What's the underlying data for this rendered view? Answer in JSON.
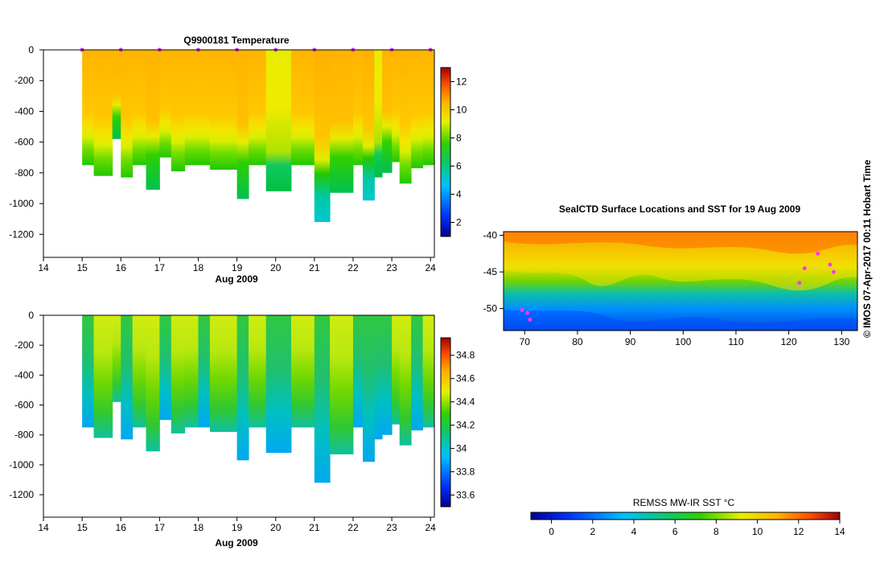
{
  "chart_data": [
    {
      "id": "temperature",
      "type": "heatmap",
      "title": "Q9900181  Temperature",
      "xlabel": "Aug 2009",
      "xlim": [
        14,
        24.1
      ],
      "xticks": [
        14,
        15,
        16,
        17,
        18,
        19,
        20,
        21,
        22,
        23,
        24
      ],
      "ylim": [
        -1350,
        0
      ],
      "yticks": [
        0,
        -200,
        -400,
        -600,
        -800,
        -1000,
        -1200
      ],
      "profile_times": [
        15.0,
        15.3,
        15.78,
        16.0,
        16.3,
        16.65,
        17.0,
        17.3,
        17.65,
        18.0,
        18.3,
        18.65,
        19.0,
        19.3,
        19.75,
        20.0,
        20.4,
        20.6,
        21.0,
        21.4,
        21.7,
        22.0,
        22.25,
        22.55,
        22.75,
        23.0,
        23.2,
        23.5,
        23.8,
        24.0
      ],
      "profile_depths": [
        750,
        820,
        580,
        830,
        750,
        910,
        700,
        790,
        750,
        750,
        780,
        780,
        970,
        750,
        920,
        920,
        750,
        750,
        1120,
        930,
        930,
        750,
        980,
        830,
        800,
        730,
        870,
        770,
        750,
        750
      ],
      "profile_class": [
        "w",
        "w",
        "n",
        "w",
        "w",
        "n",
        "w",
        "w",
        "w",
        "w",
        "w",
        "w",
        "n",
        "w",
        "m",
        "m",
        "w",
        "w",
        "c",
        "n",
        "n",
        "w",
        "c",
        "m",
        "n",
        "w",
        "w",
        "w",
        "w",
        "w"
      ],
      "markers": [
        15,
        16,
        17,
        18,
        19,
        20,
        21,
        22,
        23,
        24
      ],
      "colorbar": {
        "min": 1,
        "max": 13,
        "ticks": [
          2,
          4,
          6,
          8,
          10,
          12
        ]
      }
    },
    {
      "id": "salinity",
      "type": "heatmap",
      "title": "",
      "xlabel": "Aug 2009",
      "xlim": [
        14,
        24.1
      ],
      "xticks": [
        14,
        15,
        16,
        17,
        18,
        19,
        20,
        21,
        22,
        23,
        24
      ],
      "ylim": [
        -1350,
        0
      ],
      "yticks": [
        0,
        -200,
        -400,
        -600,
        -800,
        -1000,
        -1200
      ],
      "colorbar": {
        "min": 33.5,
        "max": 34.95,
        "ticks": [
          33.6,
          33.8,
          34,
          34.2,
          34.4,
          34.6,
          34.8
        ]
      }
    },
    {
      "id": "sst-map",
      "type": "heatmap",
      "title": "SealCTD Surface Locations and SST for 19 Aug 2009",
      "xlim": [
        66,
        133
      ],
      "xticks": [
        70,
        80,
        90,
        100,
        110,
        120,
        130
      ],
      "ylim": [
        -53,
        -39.5
      ],
      "yticks": [
        -40,
        -45,
        -50
      ],
      "colorbar": {
        "label": "REMSS MW-IR SST °C",
        "min": -1,
        "max": 14,
        "ticks": [
          0,
          2,
          4,
          6,
          8,
          10,
          12,
          14
        ]
      },
      "seal_tracks": [
        [
          69.5,
          -50.2
        ],
        [
          70.5,
          -50.6
        ],
        [
          71.0,
          -51.5
        ],
        [
          122.0,
          -46.5
        ],
        [
          123.0,
          -44.5
        ],
        [
          125.5,
          -42.5
        ],
        [
          127.8,
          -44.0
        ],
        [
          128.5,
          -45.0
        ]
      ]
    }
  ],
  "side_text": "©  IMOS 07-Apr-2017 00:11 Hobart Time",
  "colors": {
    "marker": "#cc33cc",
    "track": "#ff33ff"
  }
}
